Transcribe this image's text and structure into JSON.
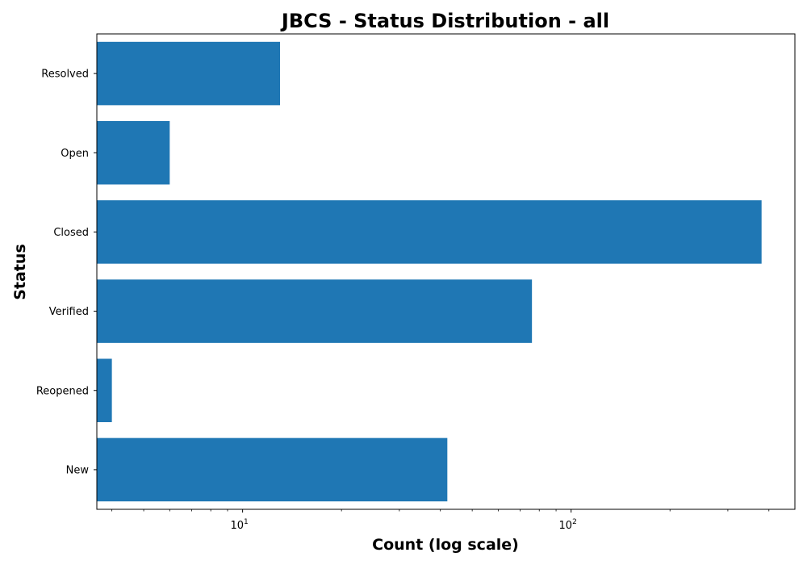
{
  "chart_data": {
    "type": "bar",
    "orientation": "horizontal",
    "title": "JBCS - Status Distribution - all",
    "xlabel": "Count (log scale)",
    "ylabel": "Status",
    "x_scale": "log",
    "xlim": [
      3.6,
      480
    ],
    "categories": [
      "Resolved",
      "Open",
      "Closed",
      "Verified",
      "Reopened",
      "New"
    ],
    "values": [
      13,
      6,
      380,
      76,
      4,
      42
    ],
    "x_major_ticks": [
      {
        "base": "10",
        "exp": "1",
        "value": 10
      },
      {
        "base": "10",
        "exp": "2",
        "value": 100
      }
    ],
    "bar_color": "#1f77b4",
    "grid": false,
    "legend": "none"
  }
}
